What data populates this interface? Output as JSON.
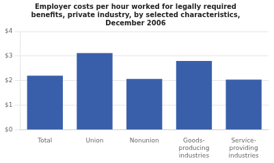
{
  "chart_data": {
    "type": "bar",
    "title": "Employer costs per hour worked for legally required\nbenefits, private industry, by selected characteristics,\nDecember 2006",
    "categories": [
      "Total",
      "Union",
      "Nonunion",
      "Goods-\nproducing\nindustries",
      "Service-\nproviding\nindustries"
    ],
    "values": [
      2.2,
      3.12,
      2.07,
      2.8,
      2.04
    ],
    "color": "#3a5faa",
    "ylim": [
      0,
      4
    ],
    "yticks": [
      {
        "value": 0,
        "label": "$0"
      },
      {
        "value": 1,
        "label": "$1"
      },
      {
        "value": 2,
        "label": "$2"
      },
      {
        "value": 3,
        "label": "$3"
      },
      {
        "value": 4,
        "label": "$4"
      }
    ],
    "grid": true
  }
}
